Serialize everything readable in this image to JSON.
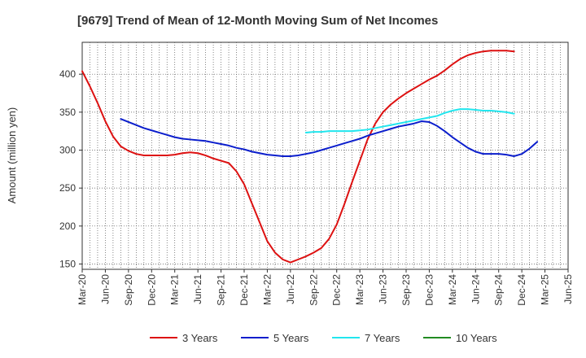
{
  "chart_data": {
    "type": "line",
    "title": "[9679]  Trend of Mean of 12-Month Moving Sum of Net Incomes",
    "ylabel": "Amount (million yen)",
    "xlabel": "",
    "ylim": [
      143,
      442
    ],
    "yticks": [
      150,
      200,
      250,
      300,
      350,
      400
    ],
    "x_start": "2020-03",
    "x_end": "2025-06",
    "xtick_labels": [
      "Mar-20",
      "Jun-20",
      "Sep-20",
      "Dec-20",
      "Mar-21",
      "Jun-21",
      "Sep-21",
      "Dec-21",
      "Mar-22",
      "Jun-22",
      "Sep-22",
      "Dec-22",
      "Mar-23",
      "Jun-23",
      "Sep-23",
      "Dec-23",
      "Mar-24",
      "Jun-24",
      "Sep-24",
      "Dec-24",
      "Mar-25",
      "Jun-25"
    ],
    "grid": true,
    "legend_position": "bottom",
    "series": [
      {
        "name": "3 Years",
        "color": "#dd1111",
        "start": "2020-03",
        "values": [
          404,
          384,
          362,
          338,
          318,
          305,
          299,
          295,
          293,
          293,
          293,
          293,
          294,
          296,
          297,
          296,
          293,
          289,
          286,
          283,
          272,
          255,
          230,
          205,
          180,
          165,
          156,
          152,
          156,
          160,
          165,
          171,
          183,
          202,
          229,
          258,
          286,
          314,
          335,
          350,
          360,
          368,
          375,
          381,
          387,
          393,
          398,
          405,
          413,
          420,
          425,
          428,
          430,
          431,
          431,
          431,
          430
        ]
      },
      {
        "name": "5 Years",
        "color": "#0b1ecc",
        "start": "2020-08",
        "values": [
          341,
          337,
          333,
          329,
          326,
          323,
          320,
          317,
          315,
          314,
          313,
          312,
          310,
          308,
          306,
          303,
          301,
          298,
          296,
          294,
          293,
          292,
          292,
          293,
          295,
          297,
          300,
          303,
          306,
          309,
          312,
          315,
          319,
          322,
          325,
          328,
          331,
          333,
          335,
          338,
          337,
          332,
          325,
          317,
          310,
          303,
          298,
          295,
          295,
          295,
          294,
          292,
          295,
          302,
          311
        ]
      },
      {
        "name": "7 Years",
        "color": "#22e6ee",
        "start": "2022-08",
        "values": [
          323,
          324,
          324,
          325,
          325,
          325,
          325,
          326,
          327,
          329,
          331,
          333,
          335,
          337,
          339,
          341,
          343,
          345,
          349,
          352,
          354,
          354,
          353,
          352,
          352,
          351,
          350,
          348
        ]
      },
      {
        "name": "10 Years",
        "color": "#228b22",
        "start": "2020-03",
        "values": []
      }
    ]
  }
}
